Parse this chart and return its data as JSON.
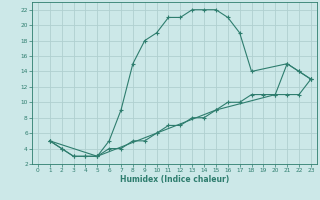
{
  "xlabel": "Humidex (Indice chaleur)",
  "bg_color": "#cce8e8",
  "grid_color": "#b0d0d0",
  "line_color": "#2e7d6e",
  "xlim": [
    -0.5,
    23.5
  ],
  "ylim": [
    2,
    23
  ],
  "xticks": [
    0,
    1,
    2,
    3,
    4,
    5,
    6,
    7,
    8,
    9,
    10,
    11,
    12,
    13,
    14,
    15,
    16,
    17,
    18,
    19,
    20,
    21,
    22,
    23
  ],
  "yticks": [
    2,
    4,
    6,
    8,
    10,
    12,
    14,
    16,
    18,
    20,
    22
  ],
  "curve1_x": [
    1,
    2,
    3,
    4,
    5,
    6,
    7,
    8,
    9,
    10,
    11,
    12,
    13,
    14,
    15,
    16,
    17,
    18,
    21,
    22,
    23
  ],
  "curve1_y": [
    5,
    4,
    3,
    3,
    3,
    5,
    9,
    15,
    18,
    19,
    21,
    21,
    22,
    22,
    22,
    21,
    19,
    14,
    15,
    14,
    13
  ],
  "curve2_x": [
    1,
    2,
    3,
    4,
    5,
    6,
    7,
    8,
    9,
    10,
    11,
    12,
    13,
    14,
    15,
    16,
    17,
    18,
    19,
    20,
    21,
    22,
    23
  ],
  "curve2_y": [
    5,
    4,
    3,
    3,
    3,
    4,
    4,
    5,
    5,
    6,
    7,
    7,
    8,
    8,
    9,
    10,
    10,
    11,
    11,
    11,
    15,
    14,
    13
  ],
  "curve3_x": [
    1,
    5,
    10,
    15,
    20,
    21,
    22,
    23
  ],
  "curve3_y": [
    5,
    3,
    6,
    9,
    11,
    11,
    11,
    13
  ]
}
